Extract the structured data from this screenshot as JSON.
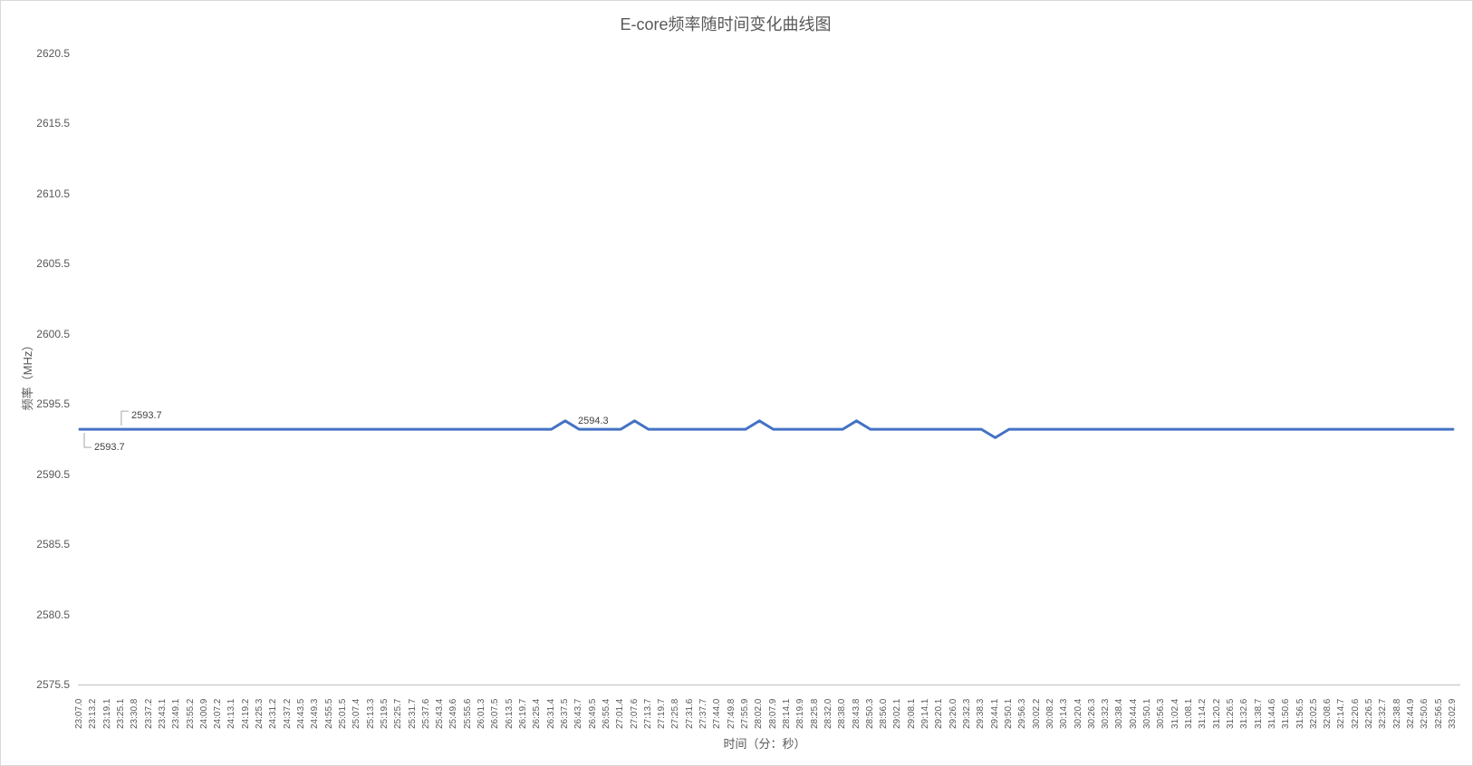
{
  "colors": {
    "series_line": "#4472C4",
    "axis_line": "#BFBFBF",
    "leader_line": "#A6A6A6",
    "tick_text": "#595959",
    "title_text": "#595959",
    "data_label_text": "#404040",
    "chart_border": "#D9D9D9"
  },
  "chart_data": {
    "type": "line",
    "title": "E-core频率随时间变化曲线图",
    "xlabel": "时间（分：秒）",
    "ylabel": "频率（MHz）",
    "ylim": [
      2575.5,
      2620.5
    ],
    "y_major_unit": 5,
    "grid": false,
    "legend": false,
    "x_tick_rotation": 90,
    "y_tick_labels": [
      "2575.5",
      "2580.5",
      "2585.5",
      "2590.5",
      "2595.5",
      "2600.5",
      "2605.5",
      "2610.5",
      "2615.5",
      "2620.5"
    ],
    "categories": [
      "23:07.0",
      "23:13.2",
      "23:19.1",
      "23:25.1",
      "23:30.8",
      "23:37.2",
      "23:43.1",
      "23:49.1",
      "23:55.2",
      "24:00.9",
      "24:07.2",
      "24:13.1",
      "24:19.2",
      "24:25.3",
      "24:31.2",
      "24:37.2",
      "24:43.5",
      "24:49.3",
      "24:55.5",
      "25:01.5",
      "25:07.4",
      "25:13.3",
      "25:19.5",
      "25:25.7",
      "25:31.7",
      "25:37.6",
      "25:43.4",
      "25:49.6",
      "25:55.6",
      "26:01.3",
      "26:07.5",
      "26:13.5",
      "26:19.7",
      "26:25.4",
      "26:31.4",
      "26:37.5",
      "26:43.7",
      "26:49.5",
      "26:55.4",
      "27:01.4",
      "27:07.6",
      "27:13.7",
      "27:19.7",
      "27:25.8",
      "27:31.6",
      "27:37.7",
      "27:44.0",
      "27:49.8",
      "27:55.9",
      "28:02.0",
      "28:07.9",
      "28:14.1",
      "28:19.9",
      "28:25.8",
      "28:32.0",
      "28:38.0",
      "28:43.8",
      "28:50.3",
      "28:56.0",
      "29:02.1",
      "29:08.1",
      "29:14.1",
      "29:20.1",
      "29:26.0",
      "29:32.3",
      "29:38.3",
      "29:44.1",
      "29:50.1",
      "29:56.3",
      "30:02.2",
      "30:08.2",
      "30:14.3",
      "30:20.4",
      "30:26.3",
      "30:32.3",
      "30:38.4",
      "30:44.4",
      "30:50.1",
      "30:56.3",
      "31:02.4",
      "31:08.1",
      "31:14.2",
      "31:20.2",
      "31:26.5",
      "31:32.6",
      "31:38.7",
      "31:44.6",
      "31:50.6",
      "31:56.5",
      "32:02.5",
      "32:08.6",
      "32:14.7",
      "32:20.6",
      "32:26.5",
      "32:32.7",
      "32:38.8",
      "32:44.9",
      "32:50.6",
      "32:56.5",
      "33:02.9"
    ],
    "series": [
      {
        "values": [
          2593.7,
          2593.7,
          2593.7,
          2593.7,
          2593.7,
          2593.7,
          2593.7,
          2593.7,
          2593.7,
          2593.7,
          2593.7,
          2593.7,
          2593.7,
          2593.7,
          2593.7,
          2593.7,
          2593.7,
          2593.7,
          2593.7,
          2593.7,
          2593.7,
          2593.7,
          2593.7,
          2593.7,
          2593.7,
          2593.7,
          2593.7,
          2593.7,
          2593.7,
          2593.7,
          2593.7,
          2593.7,
          2593.7,
          2593.7,
          2593.7,
          2594.3,
          2593.7,
          2593.7,
          2593.7,
          2593.7,
          2594.3,
          2593.7,
          2593.7,
          2593.7,
          2593.7,
          2593.7,
          2593.7,
          2593.7,
          2593.7,
          2594.3,
          2593.7,
          2593.7,
          2593.7,
          2593.7,
          2593.7,
          2593.7,
          2594.3,
          2593.7,
          2593.7,
          2593.7,
          2593.7,
          2593.7,
          2593.7,
          2593.7,
          2593.7,
          2593.7,
          2593.1,
          2593.7,
          2593.7,
          2593.7,
          2593.7,
          2593.7,
          2593.7,
          2593.7,
          2593.7,
          2593.7,
          2593.7,
          2593.7,
          2593.7,
          2593.7,
          2593.7,
          2593.7,
          2593.7,
          2593.7,
          2593.7,
          2593.7,
          2593.7,
          2593.7,
          2593.7,
          2593.7,
          2593.7,
          2593.7,
          2593.7,
          2593.7,
          2593.7,
          2593.7,
          2593.7,
          2593.7,
          2593.7,
          2593.7
        ]
      }
    ],
    "annotations": [
      {
        "text": "2593.7",
        "index": 0,
        "placement": "below"
      },
      {
        "text": "2593.7",
        "index": 3,
        "placement": "above"
      },
      {
        "text": "2594.3",
        "index": 35,
        "placement": "right"
      }
    ]
  }
}
